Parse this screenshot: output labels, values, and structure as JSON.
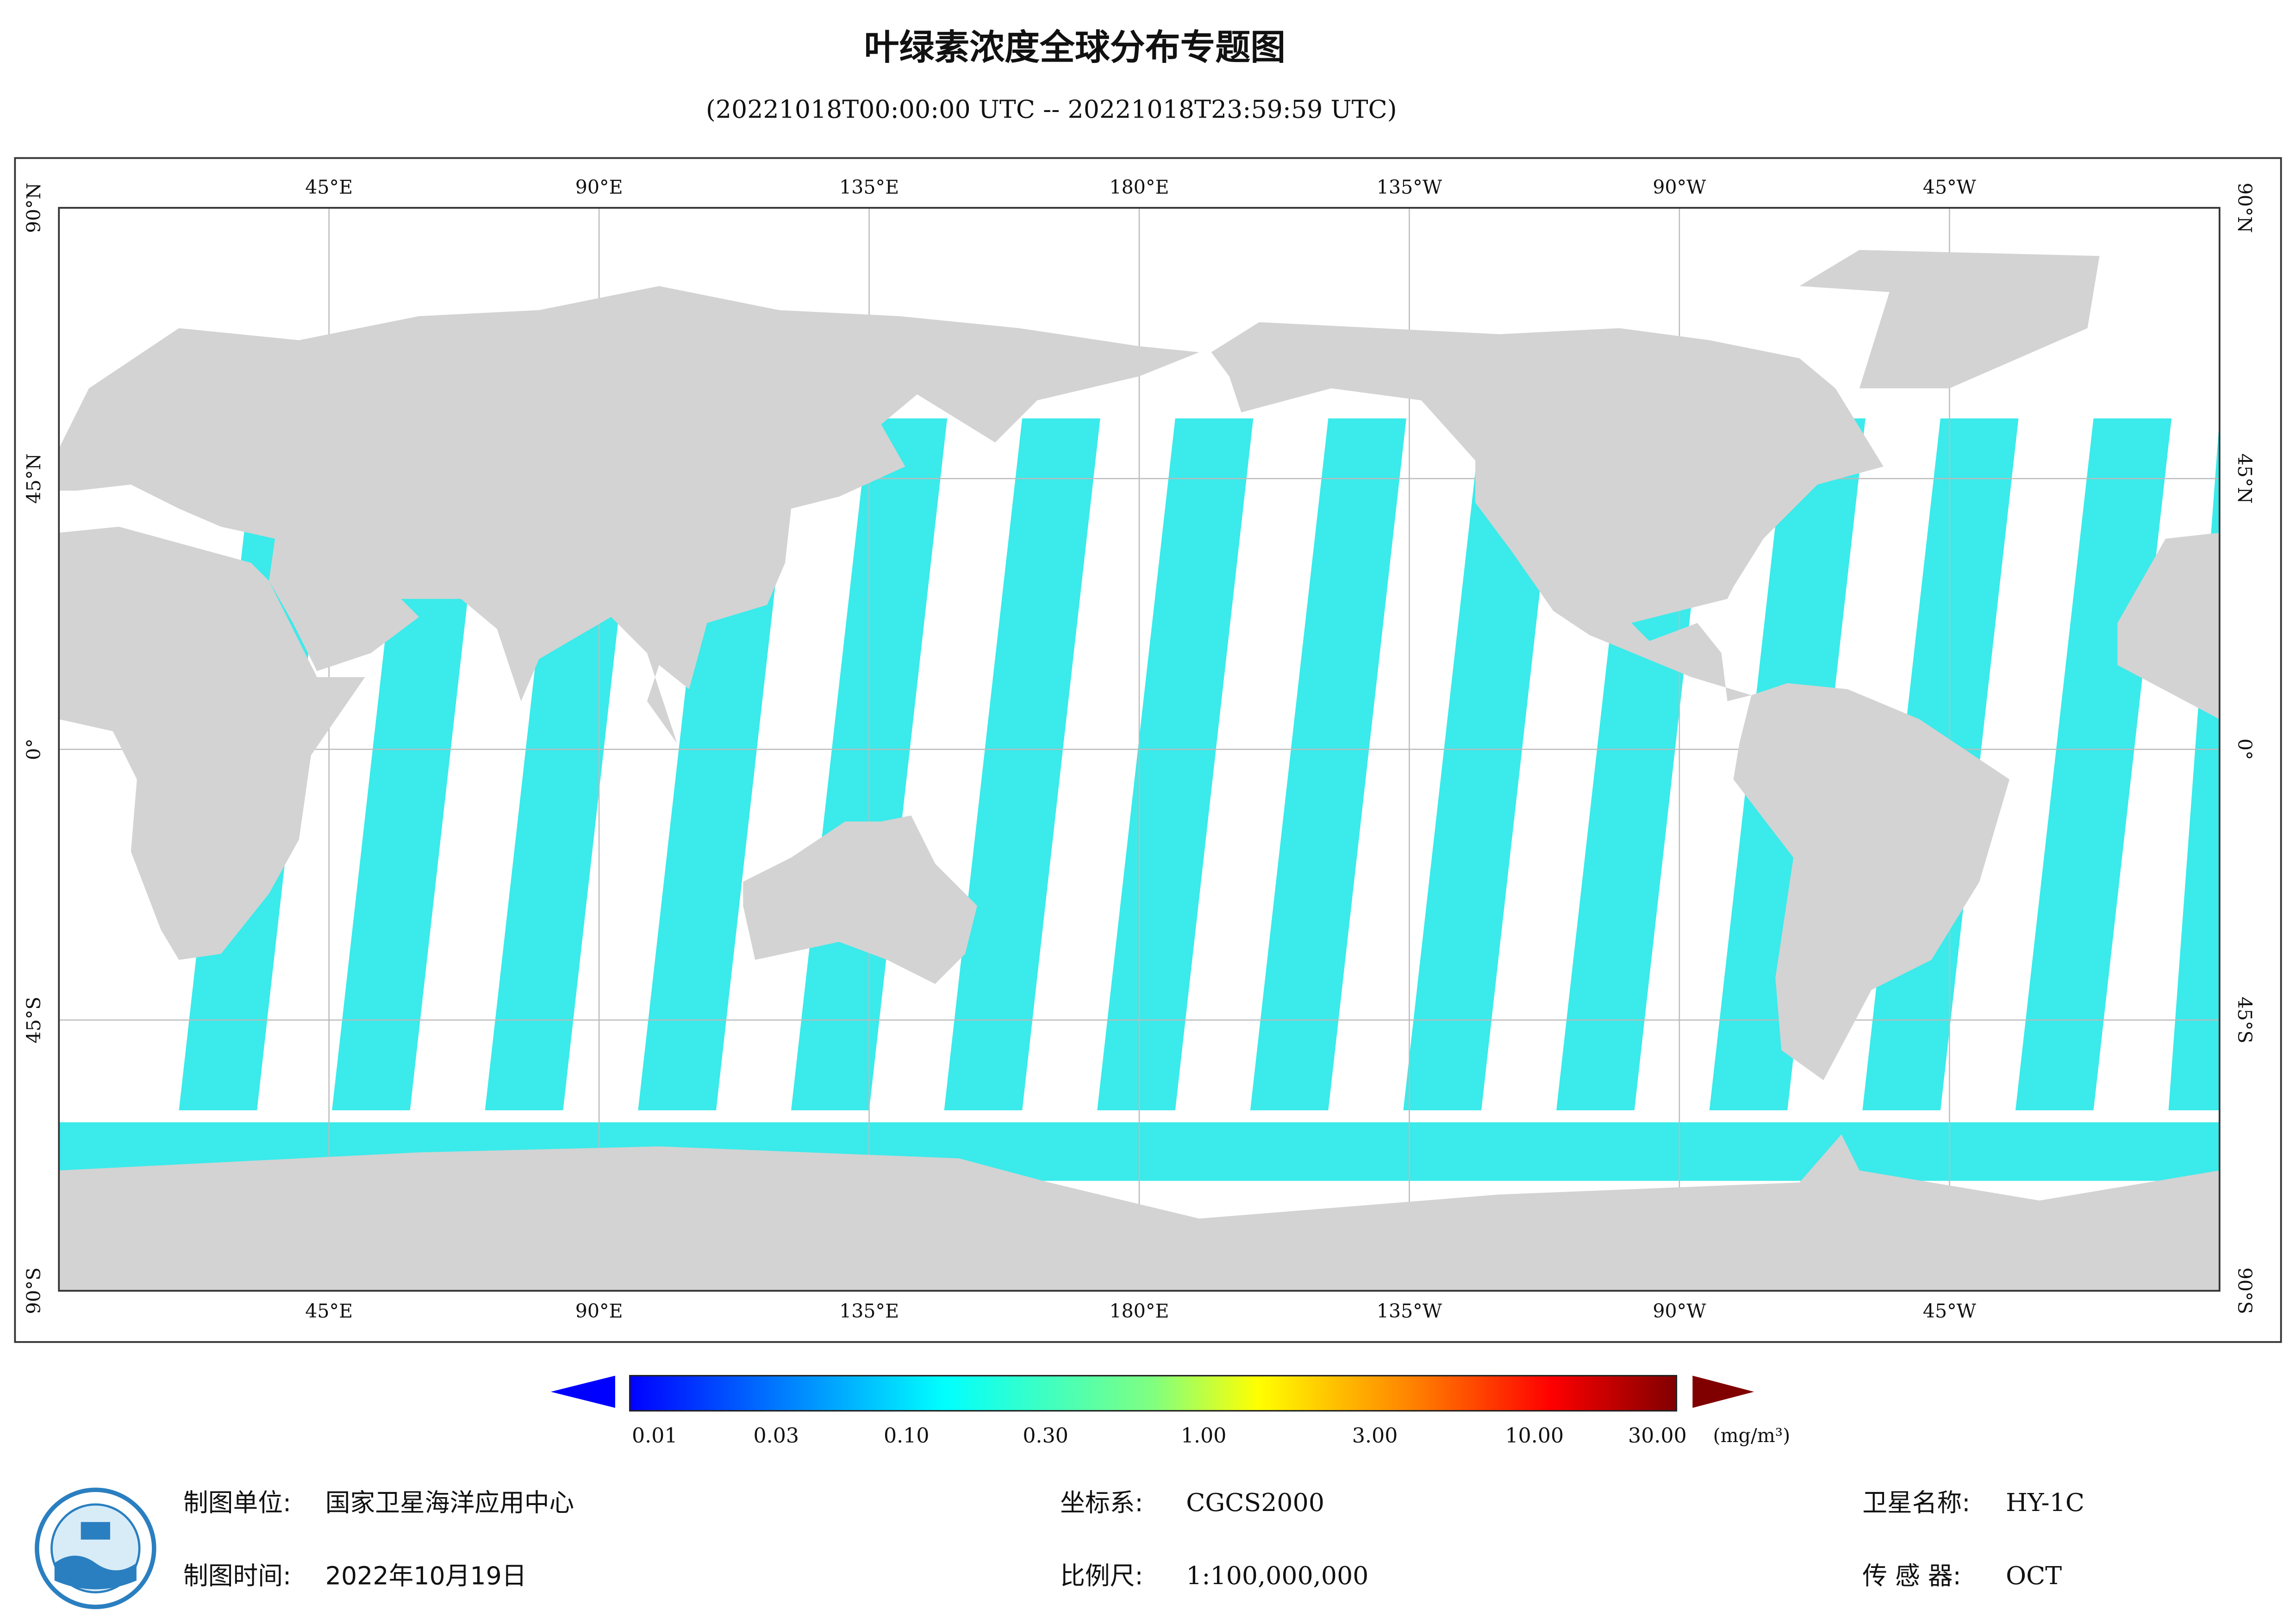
{
  "title": "叶绿素浓度全球分布专题图",
  "subtitle": "(20221018T00:00:00 UTC -- 20221018T23:59:59 UTC)",
  "map": {
    "lon_labels": [
      "45°E",
      "90°E",
      "135°E",
      "180°E",
      "135°W",
      "90°W",
      "45°W"
    ],
    "lat_labels": [
      "90°N",
      "45°N",
      "0°",
      "45°S",
      "90°S"
    ]
  },
  "colorbar": {
    "ticks": [
      "0.01",
      "0.03",
      "0.10",
      "0.30",
      "1.00",
      "3.00",
      "10.00",
      "30.00"
    ],
    "unit": "(mg/m³)"
  },
  "footer": {
    "unit_label": "制图单位:",
    "unit": "国家卫星海洋应用中心",
    "time_label": "制图时间:",
    "time": "2022年10月19日",
    "crs_label": "坐标系:",
    "crs": "CGCS2000",
    "scale_label": "比例尺:",
    "scale": "1:100,000,000",
    "satellite_label": "卫星名称:",
    "satellite": "HY-1C",
    "sensor_label": "传 感 器:",
    "sensor": "OCT"
  }
}
